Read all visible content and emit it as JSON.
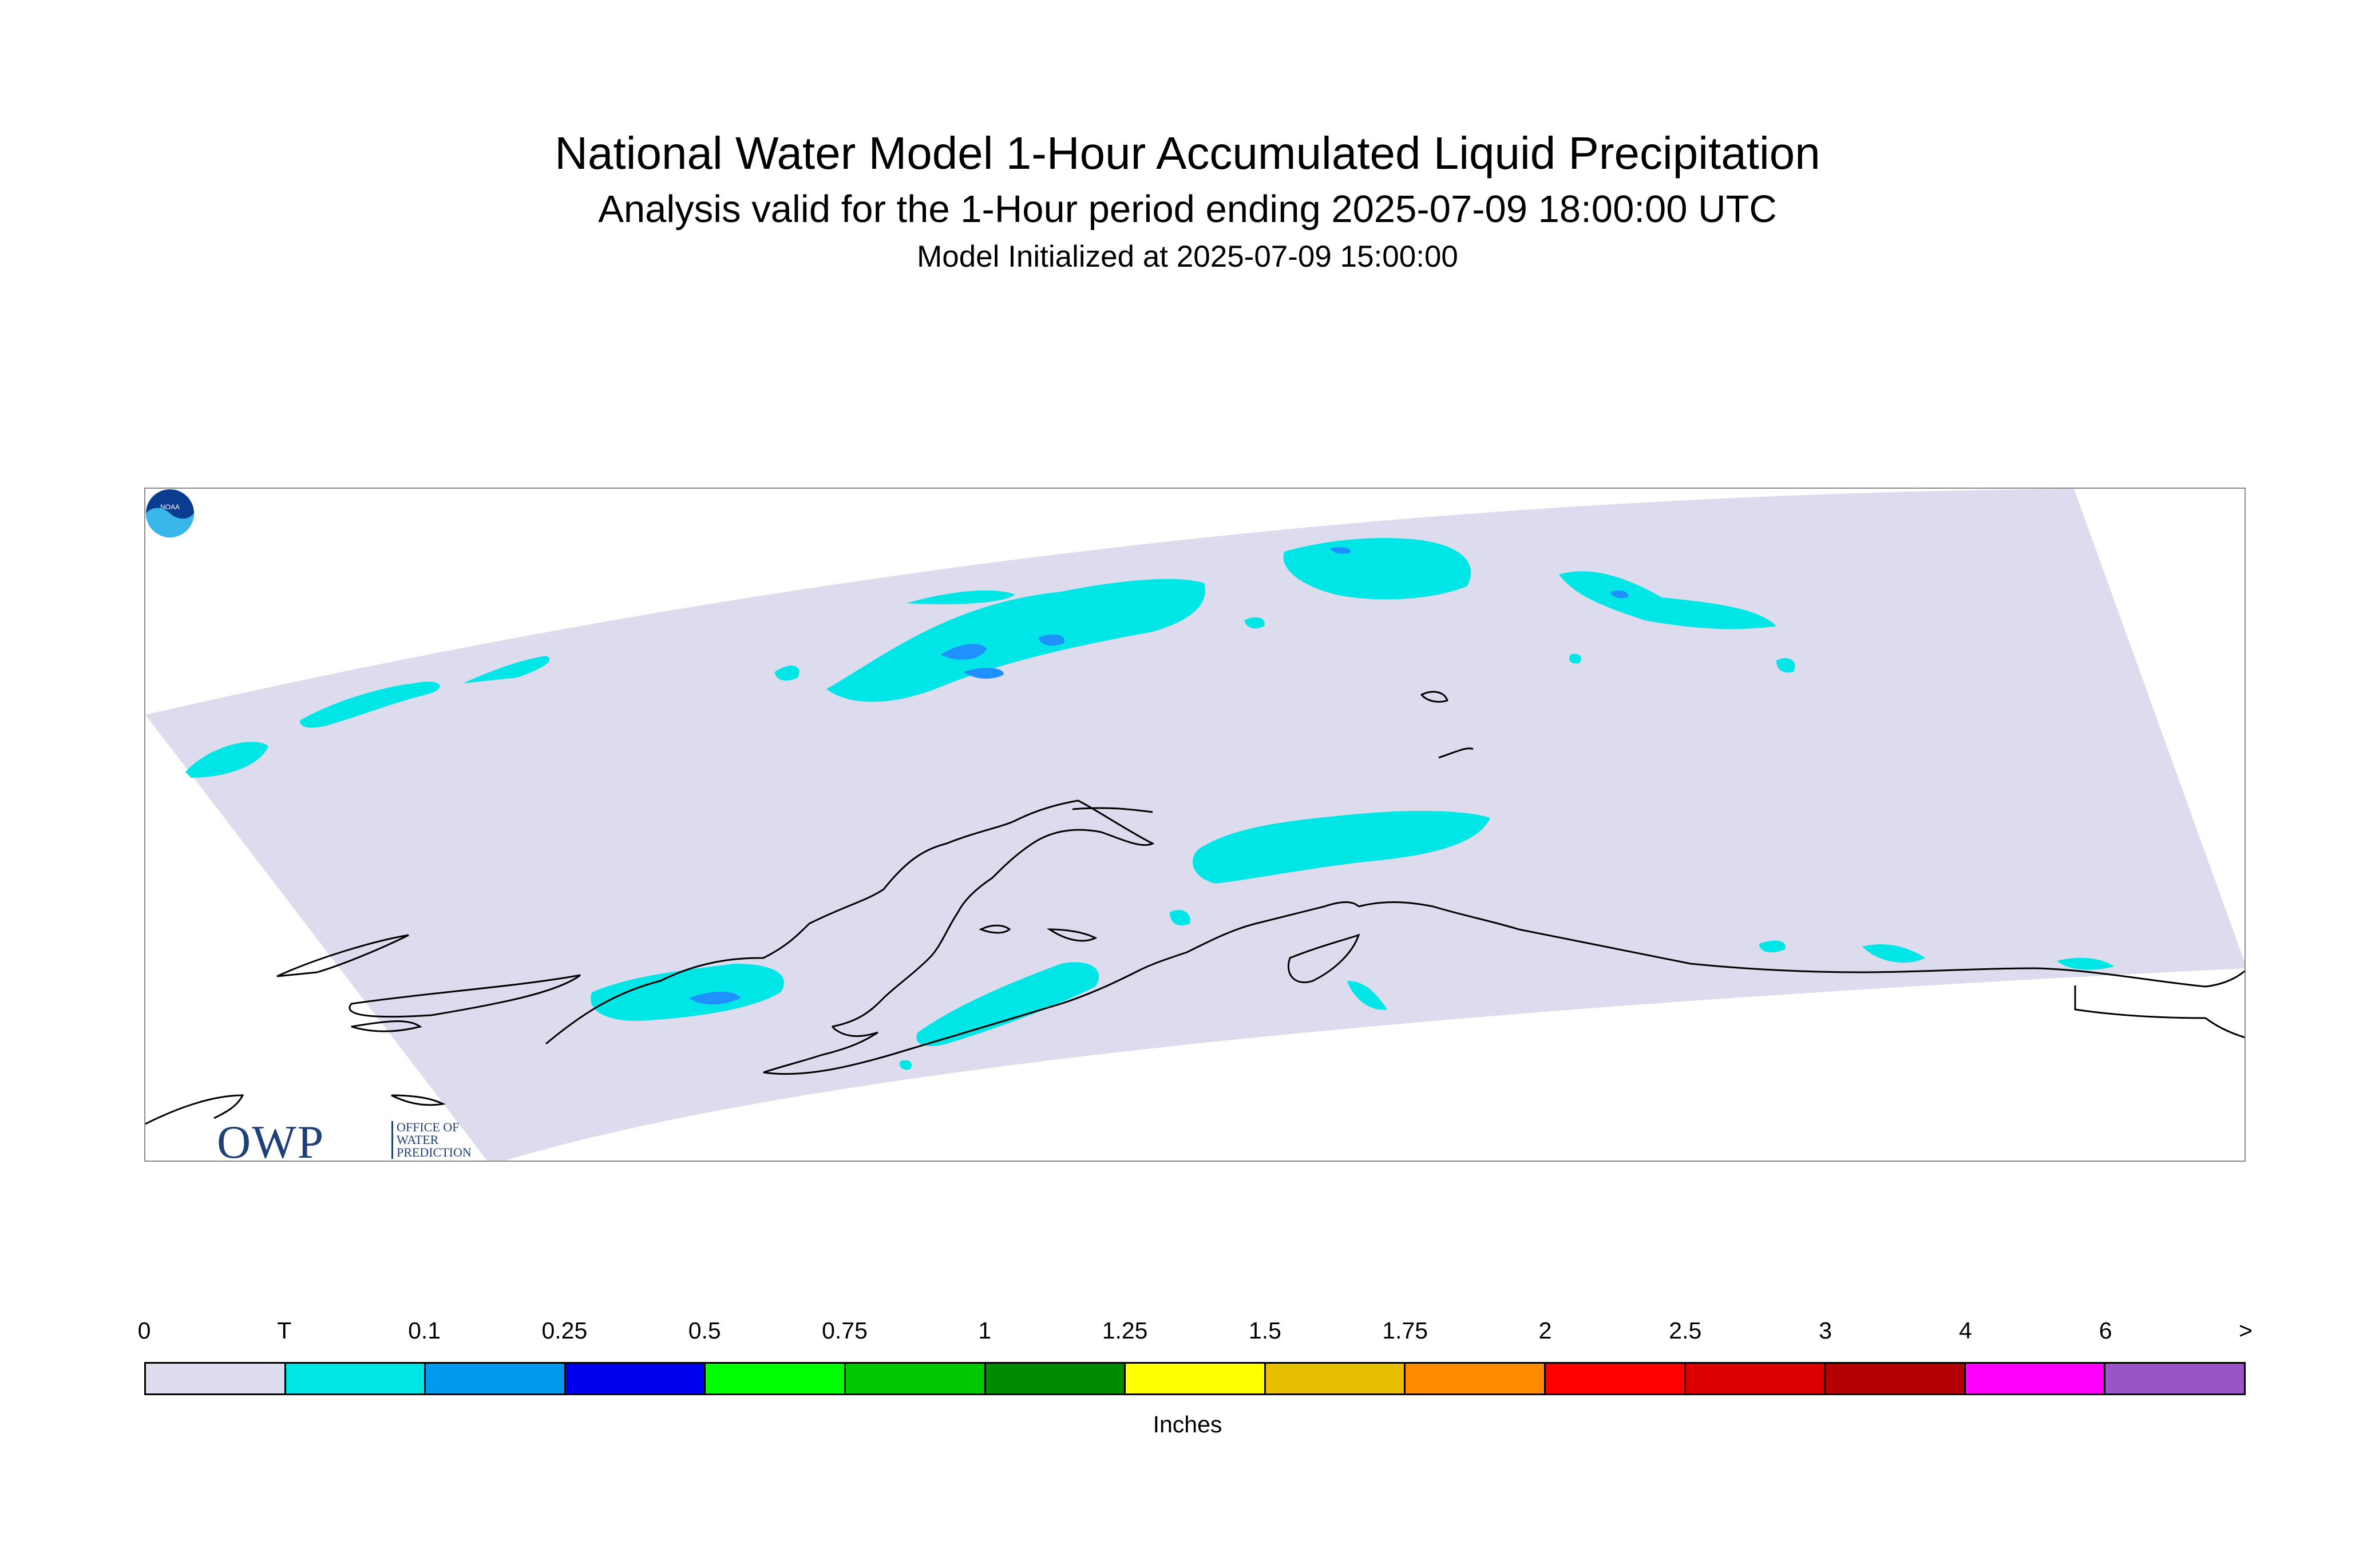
{
  "header": {
    "title": "National Water Model 1-Hour Accumulated Liquid Precipitation",
    "subtitle": "Analysis valid for the 1-Hour period ending 2025-07-09 18:00:00 UTC",
    "initialized": "Model Initialized at 2025-07-09 15:00:00"
  },
  "map": {
    "domain_fill_color": "#dcdcee",
    "coastline_color": "#000000",
    "region": "Alaska",
    "precipitation_colors": {
      "trace": "#00e6e6",
      "light": "#1e90ff"
    }
  },
  "logos": {
    "owp": {
      "letters": "OWP",
      "text": "OFFICE OF WATER PREDICTION"
    },
    "noaa": {
      "text": "NOAA",
      "icon": "noaa-logo-icon"
    }
  },
  "legend": {
    "units": "Inches",
    "tick_labels": [
      "0",
      "T",
      "0.1",
      "0.25",
      "0.5",
      "0.75",
      "1",
      "1.25",
      "1.5",
      "1.75",
      "2",
      "2.5",
      "3",
      "4",
      "6",
      ">"
    ],
    "colors": [
      "#dcdcee",
      "#00e6e6",
      "#0099ee",
      "#0000ee",
      "#00ff00",
      "#00c800",
      "#008c00",
      "#ffff00",
      "#e6c000",
      "#ff8c00",
      "#ff0000",
      "#dc0000",
      "#b40000",
      "#ff00ff",
      "#9955c8"
    ]
  }
}
